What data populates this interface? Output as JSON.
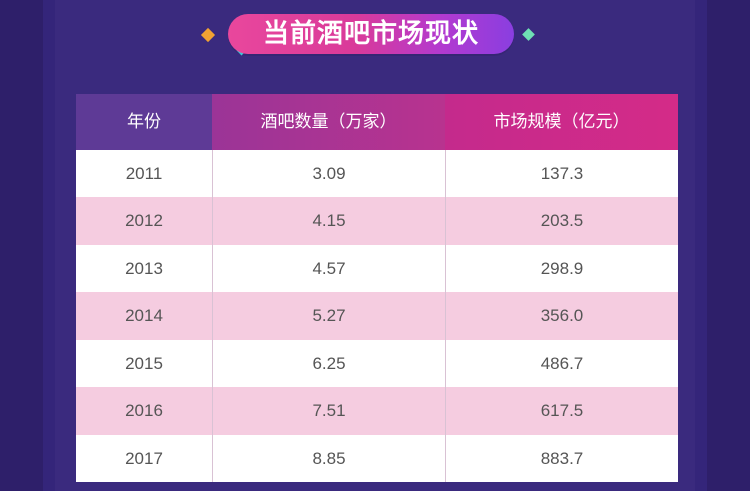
{
  "title": "当前酒吧市场现状",
  "colors": {
    "background": "#3a2a7e",
    "header_year": "#5e3a96",
    "header_count": "#b8338f",
    "header_market": "#d42b88",
    "row_odd": "#ffffff",
    "row_even": "#f5cce0"
  },
  "chart_data": {
    "type": "table",
    "title": "当前酒吧市场现状",
    "columns": [
      "年份",
      "酒吧数量（万家）",
      "市场规模（亿元）"
    ],
    "rows": [
      [
        "2011",
        "3.09",
        "137.3"
      ],
      [
        "2012",
        "4.15",
        "203.5"
      ],
      [
        "2013",
        "4.57",
        "298.9"
      ],
      [
        "2014",
        "5.27",
        "356.0"
      ],
      [
        "2015",
        "6.25",
        "486.7"
      ],
      [
        "2016",
        "7.51",
        "617.5"
      ],
      [
        "2017",
        "8.85",
        "883.7"
      ]
    ]
  }
}
